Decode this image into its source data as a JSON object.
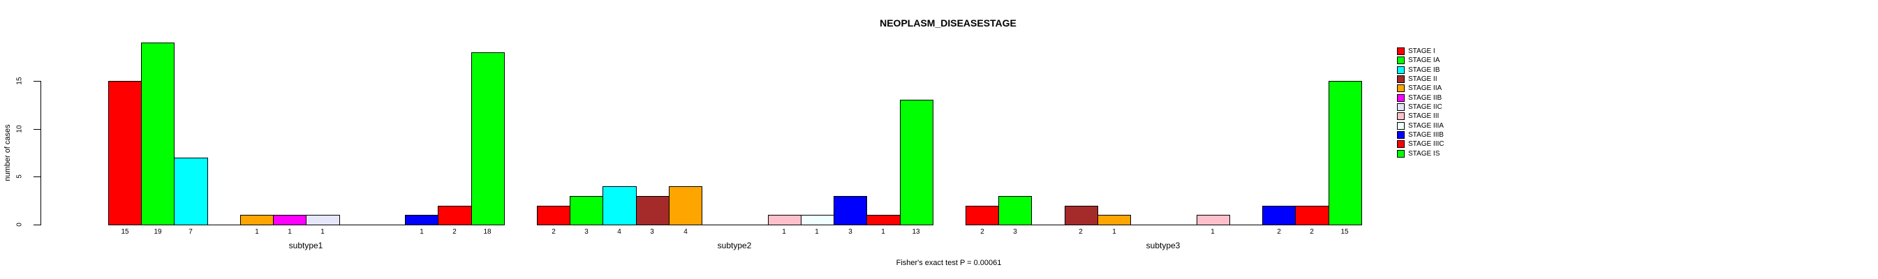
{
  "chart_data": {
    "type": "bar",
    "title": "NEOPLASM_DISEASESTAGE",
    "ylabel": "number of cases",
    "xlabel": "",
    "footnote": "Fisher's exact test P = 0.00061",
    "categories": [
      "subtype1",
      "subtype2",
      "subtype3"
    ],
    "yticks": [
      0,
      5,
      10,
      15
    ],
    "ylim": [
      0,
      19
    ],
    "grid": false,
    "legend_position": "right",
    "bar_value_labels": true,
    "series": [
      {
        "name": "STAGE I",
        "color": "#FF0000",
        "values": [
          15,
          2,
          2
        ]
      },
      {
        "name": "STAGE IA",
        "color": "#00FF00",
        "values": [
          19,
          3,
          3
        ]
      },
      {
        "name": "STAGE IB",
        "color": "#00FFFF",
        "values": [
          7,
          4,
          0
        ]
      },
      {
        "name": "STAGE II",
        "color": "#A52A2A",
        "values": [
          0,
          3,
          2
        ]
      },
      {
        "name": "STAGE IIA",
        "color": "#FFA500",
        "values": [
          1,
          4,
          1
        ]
      },
      {
        "name": "STAGE IIB",
        "color": "#FF00FF",
        "values": [
          1,
          0,
          0
        ]
      },
      {
        "name": "STAGE IIC",
        "color": "#E6E6FA",
        "values": [
          1,
          0,
          0
        ]
      },
      {
        "name": "STAGE III",
        "color": "#FFC0CB",
        "values": [
          0,
          1,
          1
        ]
      },
      {
        "name": "STAGE IIIA",
        "color": "#F0FFFF",
        "values": [
          0,
          1,
          0
        ]
      },
      {
        "name": "STAGE IIIB",
        "color": "#0000FF",
        "values": [
          1,
          3,
          2
        ]
      },
      {
        "name": "STAGE IIIC",
        "color": "#FF0000",
        "values": [
          2,
          1,
          2
        ]
      },
      {
        "name": "STAGE IS",
        "color": "#00FF00",
        "values": [
          18,
          13,
          15
        ]
      }
    ]
  }
}
